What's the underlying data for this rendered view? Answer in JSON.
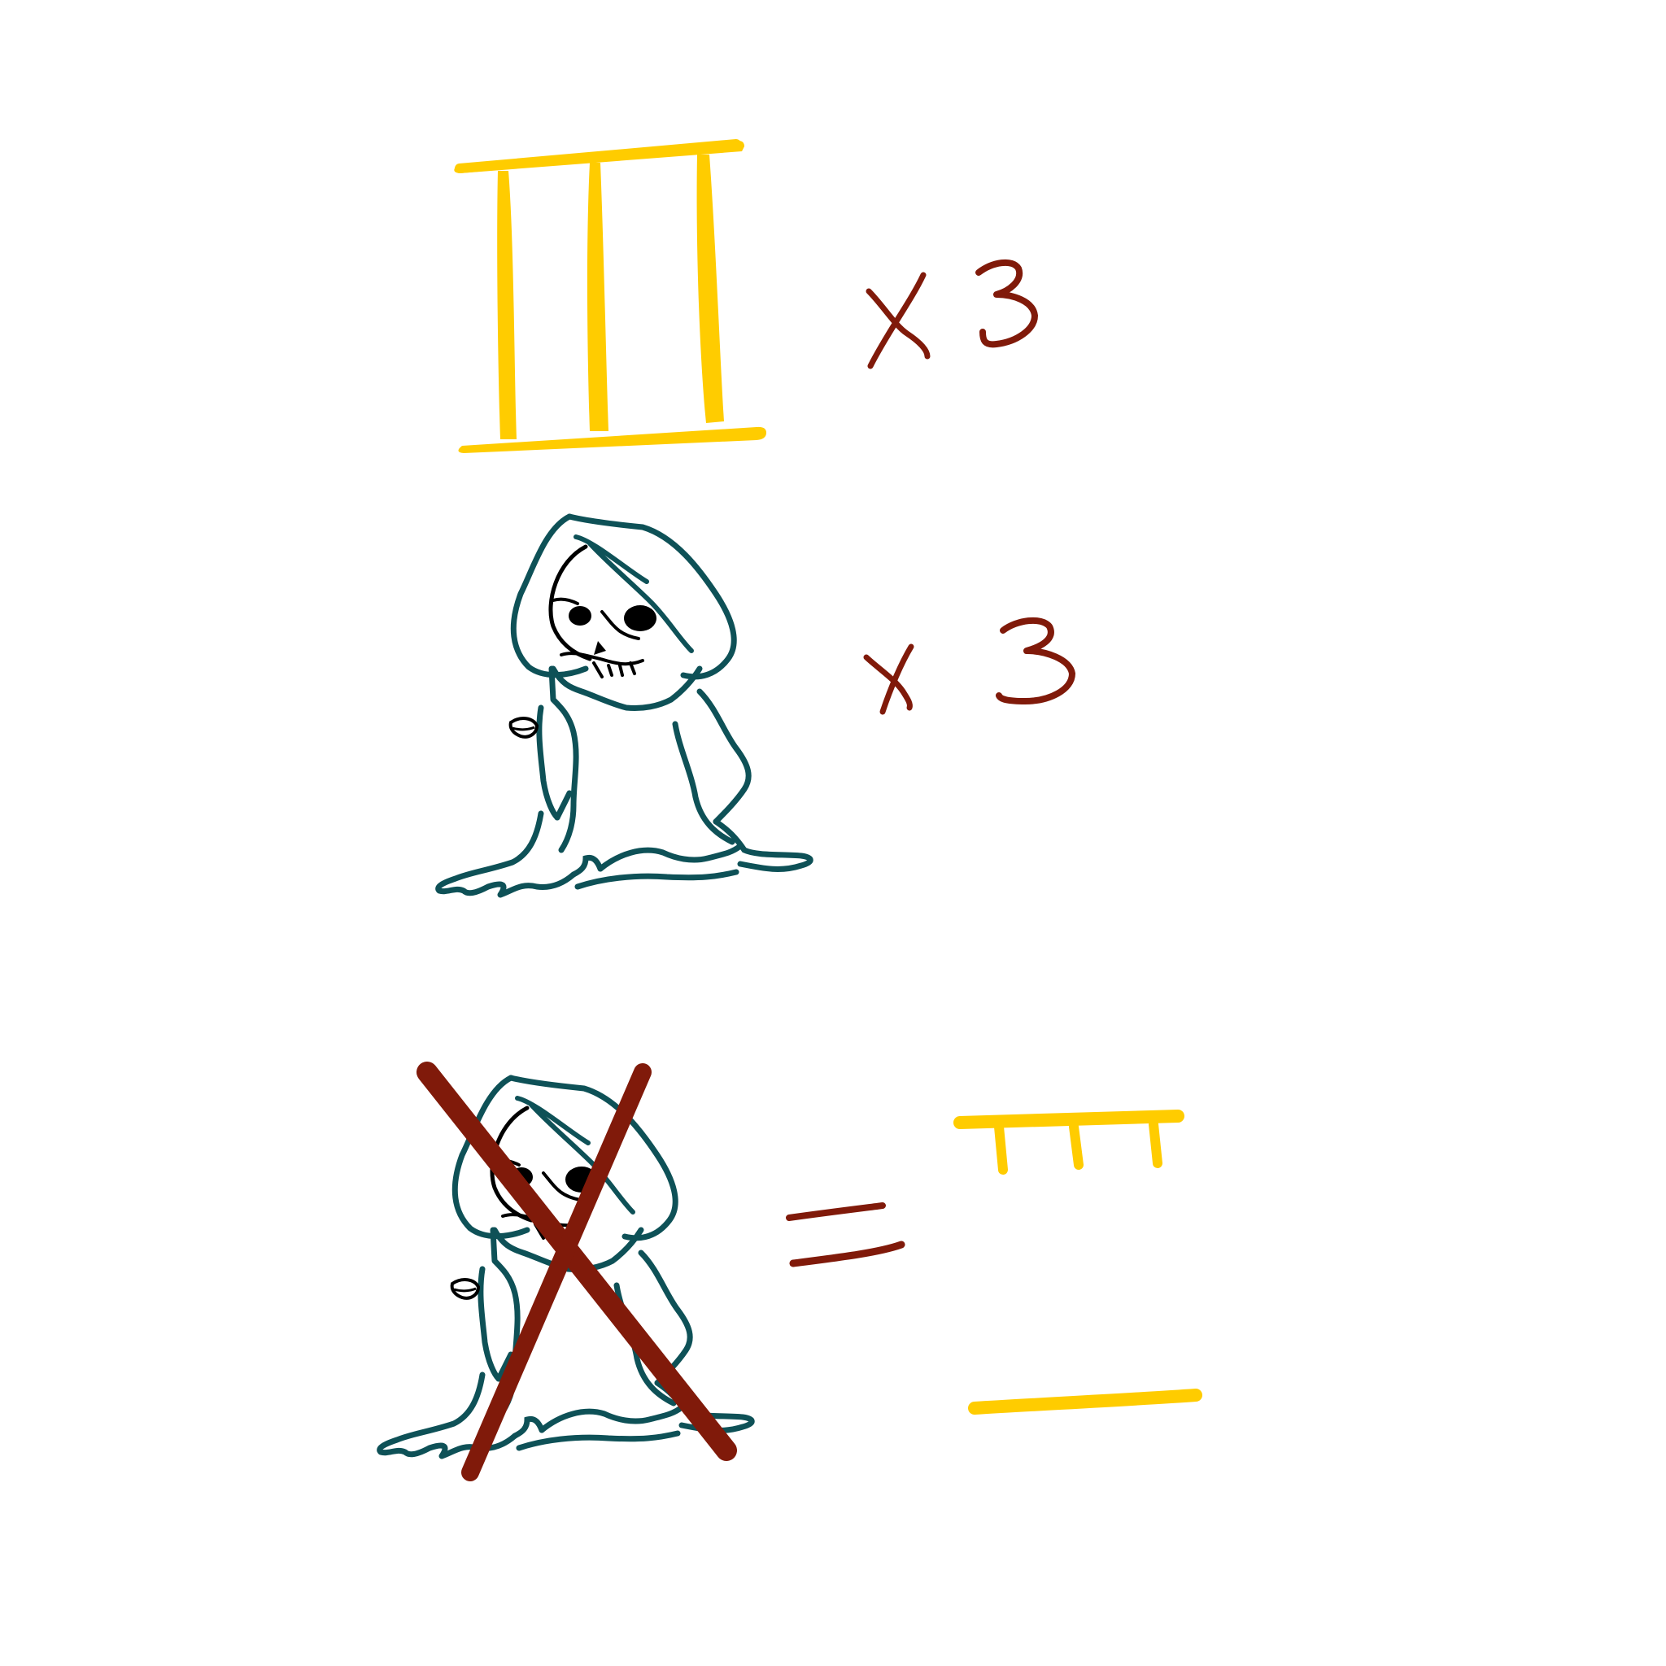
{
  "colors": {
    "background": "#ffffff",
    "gate": "#FFCC00",
    "annotation": "#801A0A",
    "reaper_outline": "#0E5157",
    "skull_ink": "#000000"
  },
  "upper_section": {
    "gate_icon": "three-pillar-gate-icon",
    "gate_multiplier": "x 3",
    "reaper_icon": "hooded-reaper-icon",
    "reaper_multiplier": "x 3"
  },
  "lower_section": {
    "crossed_reaper_icon": "crossed-out-reaper-icon",
    "cross_icon": "red-x-cross-icon",
    "equals_icon": "equals-sign-icon",
    "result_top_icon": "gate-top-beam-icon",
    "result_bottom_icon": "gate-bottom-beam-icon"
  }
}
